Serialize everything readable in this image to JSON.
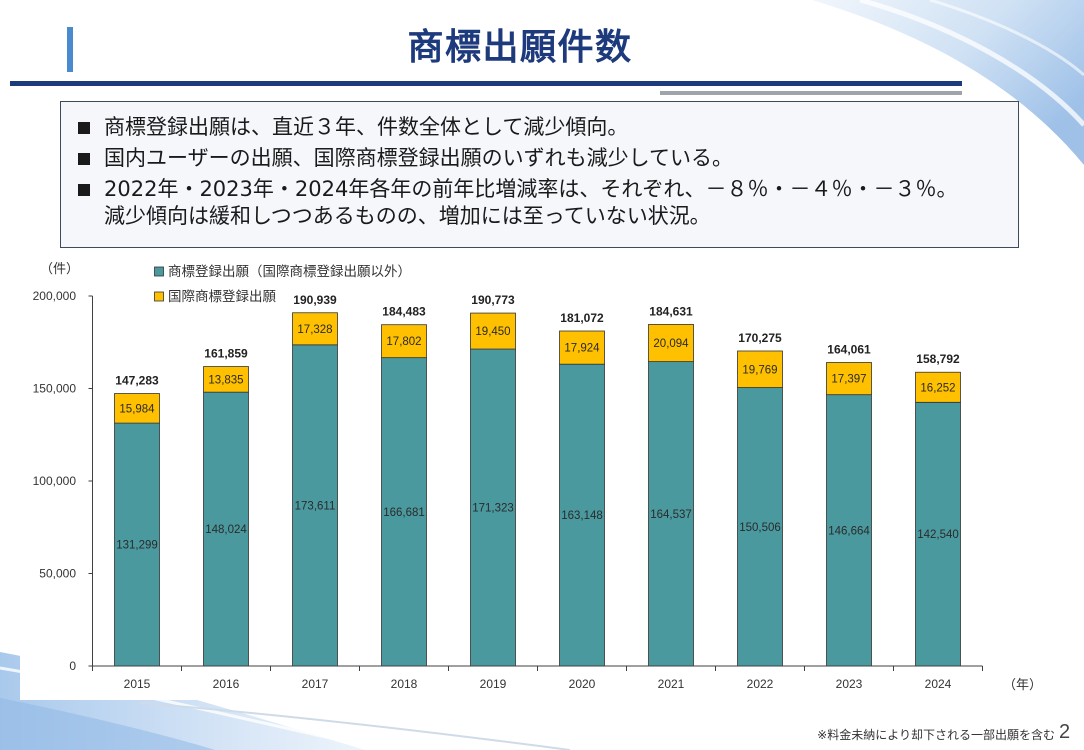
{
  "theme": {
    "title_color": "#1D3A7D",
    "accent_bar_color": "#4A8BD0",
    "rule_color": "#1D3A7D",
    "rule_secondary_color": "#A0A4AA"
  },
  "slide": {
    "title": "商標出願件数",
    "bullets": [
      {
        "lines": [
          "商標登録出願は、直近３年、件数全体として減少傾向。"
        ]
      },
      {
        "lines": [
          "国内ユーザーの出願、国際商標登録出願のいずれも減少している。"
        ]
      },
      {
        "lines": [
          "2022年・2023年・2024年各年の前年比増減率は、それぞれ、－８％・－４％・－３％。",
          "減少傾向は緩和しつつあるものの、増加には至っていない状況。"
        ]
      }
    ],
    "footnote": "※料金未納により却下される一部出願を含む",
    "page_number": "2"
  },
  "chart_data": {
    "type": "bar",
    "stacked": true,
    "categories": [
      "2015",
      "2016",
      "2017",
      "2018",
      "2019",
      "2020",
      "2021",
      "2022",
      "2023",
      "2024"
    ],
    "series": [
      {
        "name": "商標登録出願（国際商標登録出願以外）",
        "color": "#4A999F",
        "values": [
          131299,
          148024,
          173611,
          166681,
          171323,
          163148,
          164537,
          150506,
          146664,
          142540
        ]
      },
      {
        "name": "国際商標登録出願",
        "color": "#FFC000",
        "values": [
          15984,
          13835,
          17328,
          17802,
          19450,
          17924,
          20094,
          19769,
          17397,
          16252
        ]
      }
    ],
    "totals": [
      147283,
      161859,
      190939,
      184483,
      190773,
      181072,
      184631,
      170275,
      164061,
      158792
    ],
    "xlabel": "（年）",
    "ylabel": "（件）",
    "ylim": [
      0,
      200000
    ],
    "yticks": [
      0,
      50000,
      100000,
      150000,
      200000
    ],
    "grid": false,
    "legend": "top-left",
    "data_labels": true
  }
}
